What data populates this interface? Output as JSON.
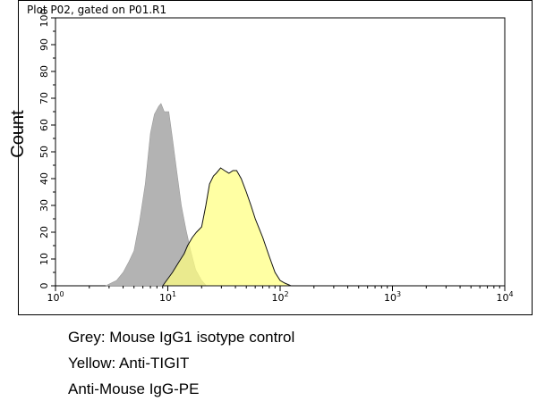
{
  "chart_data": {
    "type": "area",
    "title": "Plot P02, gated on P01.R1",
    "xlabel": "",
    "ylabel": "Count",
    "xscale": "log",
    "xlim": [
      1,
      10000
    ],
    "ylim": [
      0,
      100
    ],
    "xticks": [
      {
        "value": 1,
        "base": "10",
        "exp": "0"
      },
      {
        "value": 10,
        "base": "10",
        "exp": "1"
      },
      {
        "value": 100,
        "base": "10",
        "exp": "2"
      },
      {
        "value": 1000,
        "base": "10",
        "exp": "3"
      },
      {
        "value": 10000,
        "base": "10",
        "exp": "4"
      }
    ],
    "yticks": [
      0,
      10,
      20,
      30,
      40,
      50,
      60,
      70,
      80,
      90,
      100
    ],
    "series": [
      {
        "color": "#b3b3b3",
        "x": [
          2.8,
          3.5,
          4.0,
          4.5,
          5.0,
          5.6,
          6.3,
          7.0,
          7.6,
          8.3,
          8.7,
          9.3,
          10.2,
          11.0,
          12.0,
          13.2,
          14.5,
          16.0,
          17.7,
          20.0,
          22.0
        ],
        "y": [
          0,
          2,
          5,
          9,
          13,
          24,
          38,
          57,
          64,
          67,
          68,
          65,
          65,
          55,
          43,
          30,
          21,
          13,
          6,
          2,
          0
        ]
      },
      {
        "color": "#ffff80",
        "x": [
          9.0,
          11.0,
          12.6,
          14.0,
          15.0,
          16.5,
          18.0,
          20.0,
          21.8,
          23.5,
          25.5,
          27.0,
          29.5,
          32.0,
          35.0,
          38.0,
          41.0,
          45.0,
          50.0,
          55.0,
          60.0,
          70.0,
          80.0,
          90.0,
          100.0,
          110.0,
          125.0
        ],
        "y": [
          0,
          5,
          9,
          12,
          15,
          18,
          20,
          22,
          30,
          38,
          41,
          42,
          44,
          43,
          42,
          43,
          43,
          40,
          35,
          30,
          25,
          18,
          11,
          5,
          2,
          1,
          0
        ]
      }
    ]
  },
  "legend": {
    "line1": "Grey: Mouse IgG1 isotype control",
    "line2": "Yellow: Anti-TIGIT",
    "line3": "Anti-Mouse IgG-PE"
  }
}
